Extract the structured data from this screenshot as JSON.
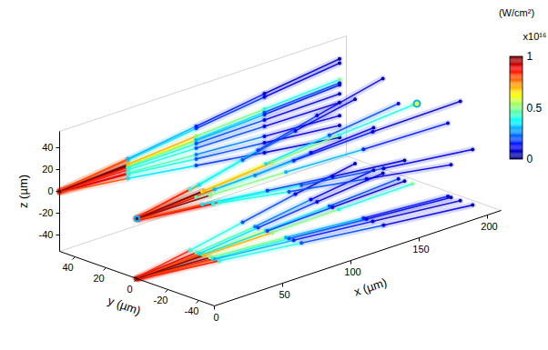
{
  "chart_data": {
    "type": "volume",
    "xlabel": "x (µm)",
    "ylabel": "y (µm)",
    "zlabel": "z (µm)",
    "xlim": [
      0,
      210
    ],
    "xticks": [
      0,
      50,
      100,
      150,
      200
    ],
    "ylim": [
      -50,
      50
    ],
    "yticks": [
      -40,
      -20,
      0,
      20,
      40
    ],
    "zlim": [
      -55,
      55
    ],
    "zticks": [
      -40,
      -20,
      0,
      20,
      40
    ],
    "colorbar": {
      "label": "(W/cm²)",
      "multiplier": "x10¹⁶",
      "range": [
        0,
        1
      ],
      "ticks": [
        0,
        0.5,
        1
      ]
    },
    "input_beam": {
      "center": [
        0,
        0,
        0
      ],
      "radius": 5,
      "intensity": 1
    },
    "output_spot": {
      "center": [
        205,
        0,
        20
      ],
      "radius": 8,
      "intensity": 0.6
    },
    "filaments": [
      {
        "x": [
          0,
          50,
          100,
          150,
          205
        ],
        "y": [
          0,
          2,
          5,
          8,
          12
        ],
        "z": [
          0,
          3,
          6,
          10,
          14
        ],
        "intensity": [
          1,
          0.6,
          0.35,
          0.2,
          0.1
        ]
      },
      {
        "x": [
          0,
          50,
          100,
          150,
          205
        ],
        "y": [
          0,
          -3,
          -8,
          -14,
          -20
        ],
        "z": [
          0,
          2,
          5,
          8,
          12
        ],
        "intensity": [
          1,
          0.5,
          0.3,
          0.15,
          0.08
        ]
      },
      {
        "x": [
          0,
          50,
          100,
          150,
          205
        ],
        "y": [
          1,
          6,
          12,
          20,
          28
        ],
        "z": [
          -1,
          -4,
          -8,
          -12,
          -16
        ],
        "intensity": [
          0.9,
          0.45,
          0.25,
          0.12,
          0.06
        ]
      },
      {
        "x": [
          0,
          50,
          100,
          150,
          205
        ],
        "y": [
          -1,
          -5,
          -10,
          -16,
          -22
        ],
        "z": [
          -1,
          -5,
          -12,
          -18,
          -25
        ],
        "intensity": [
          0.9,
          0.4,
          0.2,
          0.1,
          0.05
        ]
      },
      {
        "x": [
          0,
          50,
          100,
          150,
          205
        ],
        "y": [
          0,
          4,
          10,
          16,
          22
        ],
        "z": [
          1,
          8,
          16,
          24,
          32
        ],
        "intensity": [
          0.8,
          0.35,
          0.18,
          0.1,
          0.05
        ]
      },
      {
        "x": [
          0,
          50,
          100,
          150,
          205
        ],
        "y": [
          0,
          -6,
          -13,
          -20,
          -28
        ],
        "z": [
          1,
          9,
          18,
          27,
          36
        ],
        "intensity": [
          0.8,
          0.3,
          0.15,
          0.08,
          0.04
        ]
      },
      {
        "x": [
          0,
          50,
          100,
          150,
          205
        ],
        "y": [
          1,
          10,
          20,
          30,
          40
        ],
        "z": [
          0,
          1,
          2,
          3,
          4
        ],
        "intensity": [
          0.85,
          0.4,
          0.2,
          0.1,
          0.05
        ]
      },
      {
        "x": [
          0,
          50,
          100,
          150,
          205
        ],
        "y": [
          -1,
          -9,
          -18,
          -27,
          -36
        ],
        "z": [
          0,
          -1,
          -2,
          -3,
          -4
        ],
        "intensity": [
          0.85,
          0.4,
          0.2,
          0.1,
          0.05
        ]
      },
      {
        "x": [
          0,
          50,
          100,
          150,
          205
        ],
        "y": [
          0,
          2,
          4,
          6,
          8
        ],
        "z": [
          -1,
          -9,
          -18,
          -27,
          -36
        ],
        "intensity": [
          0.8,
          0.35,
          0.18,
          0.09,
          0.04
        ]
      },
      {
        "x": [
          0,
          50,
          100,
          150,
          205
        ],
        "y": [
          0,
          1,
          1,
          2,
          3
        ],
        "z": [
          0,
          4,
          9,
          13,
          17
        ],
        "intensity": [
          1,
          0.7,
          0.5,
          0.4,
          0.5
        ]
      }
    ]
  }
}
